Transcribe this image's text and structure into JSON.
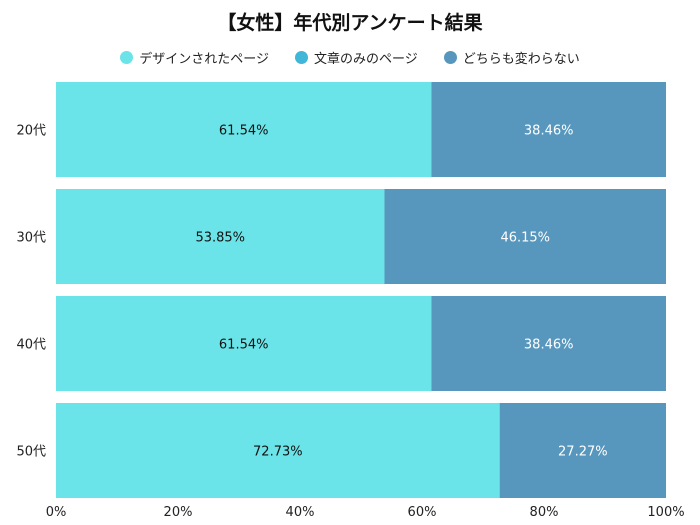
{
  "chart_data": {
    "type": "bar",
    "orientation": "horizontal",
    "stacked": true,
    "title": "【女性】年代別アンケート結果",
    "categories": [
      "20代",
      "30代",
      "40代",
      "50代"
    ],
    "series": [
      {
        "name": "デザインされたページ",
        "values": [
          61.54,
          53.85,
          61.54,
          72.73
        ],
        "color": "#6ae4e8",
        "label_color": "#111111"
      },
      {
        "name": "文章のみのページ",
        "values": [
          0,
          0,
          0,
          0
        ],
        "color": "#41b6d6",
        "label_color": "#ffffff"
      },
      {
        "name": "どちらも変わらない",
        "values": [
          38.46,
          46.15,
          38.46,
          27.27
        ],
        "color": "#5897bd",
        "label_color": "#ffffff"
      }
    ],
    "xlim": [
      0,
      100
    ],
    "xticks": [
      "0%",
      "20%",
      "40%",
      "60%",
      "80%",
      "100%"
    ],
    "grid": false,
    "legend": "top"
  }
}
